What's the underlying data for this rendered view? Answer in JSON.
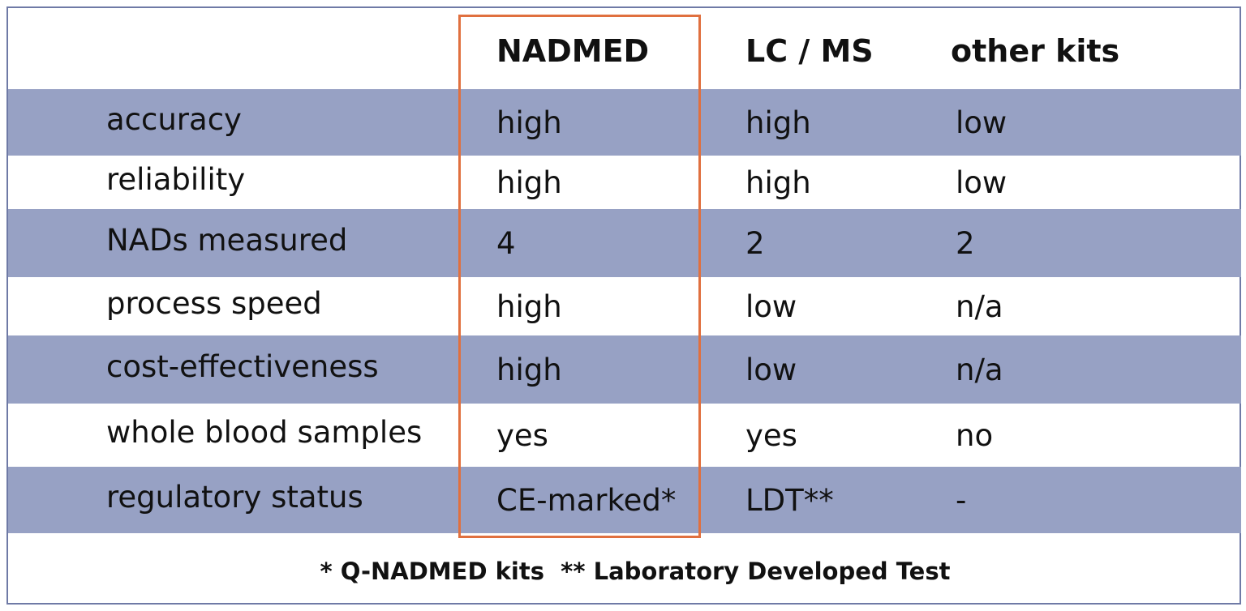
{
  "table": {
    "columns": [
      "NADMED",
      "LC / MS",
      "other kits"
    ],
    "rows": [
      [
        "accuracy",
        "high",
        "high",
        "low"
      ],
      [
        "reliability",
        "high",
        "high",
        "low"
      ],
      [
        "NADs measured",
        4,
        2,
        2
      ],
      [
        "process speed",
        "high",
        "low",
        "n/a"
      ],
      [
        "cost-effectiveness",
        "high",
        "low",
        "n/a"
      ],
      [
        "whole blood samples",
        "yes",
        "yes",
        "no"
      ],
      [
        "regulatory status",
        "CE-marked*",
        "LDT**",
        "-"
      ]
    ],
    "footnote": "* Q-NADMED kits  ** Laboratory Developed Test"
  }
}
